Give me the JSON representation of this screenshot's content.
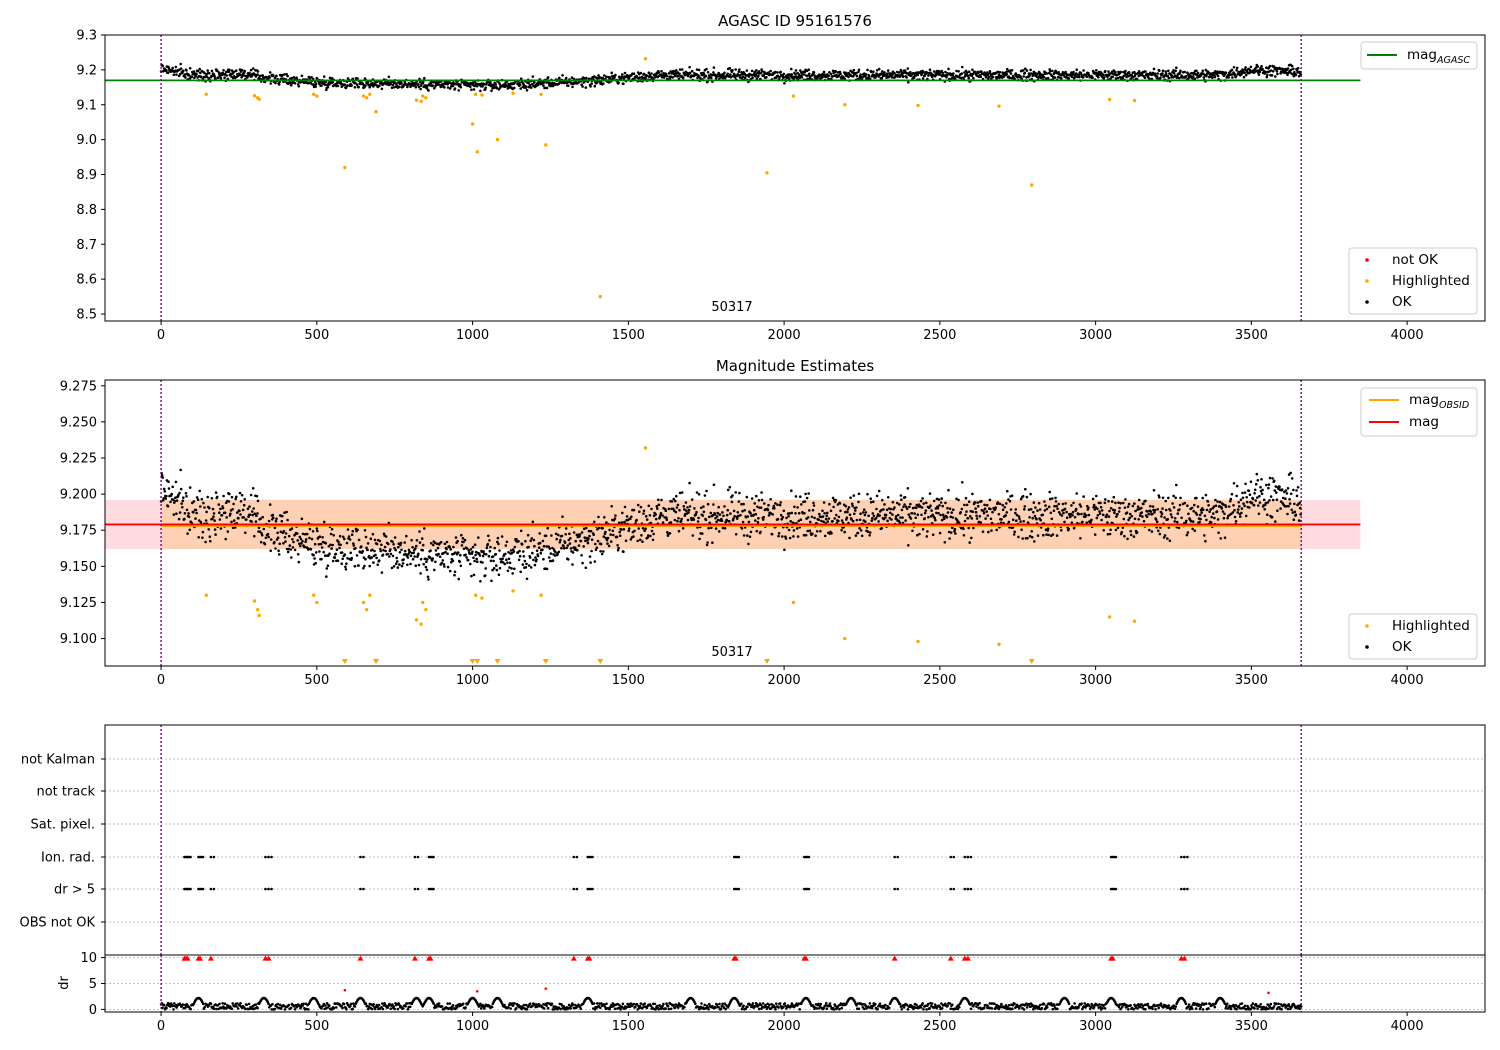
{
  "chart_data": [
    {
      "type": "scatter",
      "title": "AGASC ID 95161576",
      "xlim": [
        -180,
        4250
      ],
      "ylim": [
        8.48,
        9.3
      ],
      "xticks": [
        0,
        500,
        1000,
        1500,
        2000,
        2500,
        3000,
        3500,
        4000
      ],
      "xtick_labels": [
        "0",
        "500",
        "1000",
        "1500",
        "2000",
        "2500",
        "3000",
        "3500",
        "4000"
      ],
      "yticks": [
        8.5,
        8.6,
        8.7,
        8.8,
        8.9,
        9.0,
        9.1,
        9.2,
        9.3
      ],
      "ytick_labels": [
        "8.5",
        "8.6",
        "8.7",
        "8.8",
        "8.9",
        "9.0",
        "9.1",
        "9.2",
        "9.3"
      ],
      "annotation": "50317",
      "vlines": [
        0,
        3660
      ],
      "mag_agasc": 9.17,
      "mag_agasc_x": [
        -180,
        3850
      ],
      "ok_trend": [
        [
          0,
          9.205
        ],
        [
          100,
          9.185
        ],
        [
          250,
          9.19
        ],
        [
          350,
          9.175
        ],
        [
          500,
          9.165
        ],
        [
          800,
          9.16
        ],
        [
          1000,
          9.155
        ],
        [
          1200,
          9.16
        ],
        [
          1400,
          9.17
        ],
        [
          1600,
          9.185
        ],
        [
          2000,
          9.185
        ],
        [
          3000,
          9.185
        ],
        [
          3400,
          9.185
        ],
        [
          3500,
          9.2
        ],
        [
          3660,
          9.195
        ]
      ],
      "highlighted_points": [
        [
          145,
          9.13
        ],
        [
          300,
          9.126
        ],
        [
          310,
          9.12
        ],
        [
          315,
          9.116
        ],
        [
          490,
          9.13
        ],
        [
          500,
          9.125
        ],
        [
          590,
          8.92
        ],
        [
          650,
          9.125
        ],
        [
          660,
          9.12
        ],
        [
          670,
          9.13
        ],
        [
          690,
          9.08
        ],
        [
          820,
          9.113
        ],
        [
          835,
          9.11
        ],
        [
          840,
          9.125
        ],
        [
          850,
          9.12
        ],
        [
          1000,
          9.045
        ],
        [
          1010,
          9.13
        ],
        [
          1015,
          8.965
        ],
        [
          1030,
          9.128
        ],
        [
          1080,
          9.0
        ],
        [
          1130,
          9.133
        ],
        [
          1220,
          9.13
        ],
        [
          1235,
          8.985
        ],
        [
          1410,
          8.55
        ],
        [
          1555,
          9.232
        ],
        [
          1945,
          8.905
        ],
        [
          2030,
          9.125
        ],
        [
          2195,
          9.1
        ],
        [
          2430,
          9.098
        ],
        [
          2690,
          9.096
        ],
        [
          2795,
          8.87
        ],
        [
          3045,
          9.115
        ],
        [
          3125,
          9.112
        ]
      ],
      "legend": {
        "line_label": "mag",
        "line_sub": "AGASC",
        "marker_labels": [
          "not OK",
          "Highlighted",
          "OK"
        ],
        "position": "upper right / lower right"
      },
      "colors": {
        "ok": "#000000",
        "highlighted": "#ffa500",
        "not_ok": "#ff0000",
        "mag_agasc": "#008000",
        "vline": "#800080"
      }
    },
    {
      "type": "scatter",
      "title": "Magnitude Estimates",
      "xlim": [
        -180,
        4250
      ],
      "ylim": [
        9.081,
        9.279
      ],
      "xticks": [
        0,
        500,
        1000,
        1500,
        2000,
        2500,
        3000,
        3500,
        4000
      ],
      "xtick_labels": [
        "0",
        "500",
        "1000",
        "1500",
        "2000",
        "2500",
        "3000",
        "3500",
        "4000"
      ],
      "yticks": [
        9.1,
        9.125,
        9.15,
        9.175,
        9.2,
        9.225,
        9.25,
        9.275
      ],
      "ytick_labels": [
        "9.100",
        "9.125",
        "9.150",
        "9.175",
        "9.200",
        "9.225",
        "9.250",
        "9.275"
      ],
      "annotation": "50317",
      "vlines": [
        0,
        3660
      ],
      "mag": 9.179,
      "mag_obsid": 9.178,
      "mag_band": [
        9.162,
        9.196
      ],
      "mag_band_x": [
        -180,
        3850
      ],
      "mag_obsid_band_x": [
        0,
        3660
      ],
      "ok_trend": [
        [
          0,
          9.205
        ],
        [
          100,
          9.185
        ],
        [
          250,
          9.19
        ],
        [
          350,
          9.175
        ],
        [
          500,
          9.165
        ],
        [
          800,
          9.16
        ],
        [
          1000,
          9.155
        ],
        [
          1200,
          9.16
        ],
        [
          1400,
          9.17
        ],
        [
          1600,
          9.185
        ],
        [
          2000,
          9.185
        ],
        [
          3000,
          9.185
        ],
        [
          3400,
          9.185
        ],
        [
          3500,
          9.2
        ],
        [
          3660,
          9.195
        ]
      ],
      "highlighted_points": [
        [
          145,
          9.13
        ],
        [
          300,
          9.126
        ],
        [
          310,
          9.12
        ],
        [
          315,
          9.116
        ],
        [
          490,
          9.13
        ],
        [
          500,
          9.125
        ],
        [
          650,
          9.125
        ],
        [
          660,
          9.12
        ],
        [
          670,
          9.13
        ],
        [
          820,
          9.113
        ],
        [
          835,
          9.11
        ],
        [
          840,
          9.125
        ],
        [
          850,
          9.12
        ],
        [
          1010,
          9.13
        ],
        [
          1030,
          9.128
        ],
        [
          1130,
          9.133
        ],
        [
          1220,
          9.13
        ],
        [
          1555,
          9.232
        ],
        [
          2030,
          9.125
        ],
        [
          2195,
          9.1
        ],
        [
          2430,
          9.098
        ],
        [
          2690,
          9.096
        ],
        [
          3045,
          9.115
        ],
        [
          3125,
          9.112
        ]
      ],
      "clipped_low_markers": [
        590,
        690,
        1000,
        1015,
        1080,
        1235,
        1410,
        1945,
        2795
      ],
      "legend": {
        "lines": [
          {
            "label": "mag",
            "sub": "OBSID"
          },
          {
            "label": "mag"
          }
        ],
        "marker_labels": [
          "Highlighted",
          "OK"
        ],
        "position": "upper right / lower right"
      },
      "colors": {
        "ok": "#000000",
        "highlighted": "#ffa500",
        "mag": "#ff0000",
        "mag_obsid": "#ffa500",
        "band": "#ffc0cb",
        "vline": "#800080"
      }
    },
    {
      "type": "scatter",
      "title": "",
      "xlim": [
        -180,
        4250
      ],
      "categories": [
        "not Kalman",
        "not track",
        "Sat. pixel.",
        "Ion. rad.",
        "dr > 5",
        "OBS not OK"
      ],
      "flag_times": [
        75,
        80,
        85,
        120,
        125,
        160,
        335,
        345,
        640,
        815,
        860,
        865,
        1325,
        1370,
        1375,
        1840,
        1845,
        2065,
        2070,
        2355,
        2535,
        2580,
        2590,
        3050,
        3055,
        3275,
        3285
      ],
      "flag_rows": [
        "Ion. rad.",
        "dr > 5"
      ],
      "xticks": [
        0,
        500,
        1000,
        1500,
        2000,
        2500,
        3000,
        3500,
        4000
      ],
      "xtick_labels": [
        "0",
        "500",
        "1000",
        "1500",
        "2000",
        "2500",
        "3000",
        "3500",
        "4000"
      ],
      "vlines": [
        0,
        3660
      ]
    },
    {
      "type": "scatter",
      "title": "",
      "ylabel": "dr",
      "xlim": [
        -180,
        4250
      ],
      "ylim": [
        -0.5,
        10.5
      ],
      "yticks": [
        0,
        5,
        10
      ],
      "ytick_labels": [
        "0",
        "5",
        "10"
      ],
      "dr_typical": [
        0.0,
        1.2
      ],
      "dr_bumps": [
        120,
        330,
        490,
        640,
        820,
        860,
        1000,
        1080,
        1370,
        1700,
        1840,
        2070,
        2215,
        2355,
        2580,
        2900,
        3050,
        3275,
        3400
      ],
      "clipped_high_times": [
        75,
        80,
        85,
        120,
        125,
        160,
        335,
        345,
        640,
        815,
        860,
        865,
        1325,
        1370,
        1375,
        1840,
        1845,
        2065,
        2070,
        2355,
        2535,
        2580,
        2590,
        3050,
        3055,
        3275,
        3285
      ],
      "red_points": [
        [
          590,
          3.7
        ],
        [
          1015,
          3.5
        ],
        [
          1235,
          4.0
        ],
        [
          3555,
          3.2
        ]
      ],
      "xticks": [
        0,
        500,
        1000,
        1500,
        2000,
        2500,
        3000,
        3500,
        4000
      ],
      "xtick_labels": [
        "0",
        "500",
        "1000",
        "1500",
        "2000",
        "2500",
        "3000",
        "3500",
        "4000"
      ],
      "vlines": [
        0,
        3660
      ]
    }
  ]
}
